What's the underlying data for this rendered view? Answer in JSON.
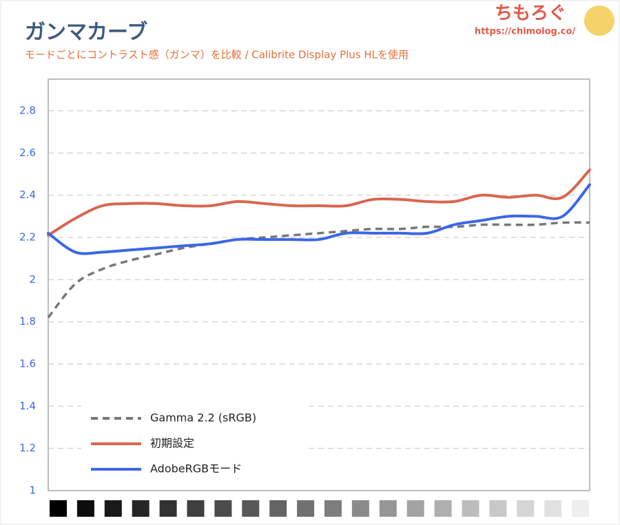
{
  "chart_data": {
    "type": "line",
    "title": "ガンマカーブ",
    "subtitle": "モードごとにコントラスト感（ガンマ）を比較 / Calibrite Display Plus HLを使用",
    "logo": {
      "name": "ちもろぐ",
      "url": "https://chimolog.co/"
    },
    "categories": [
      null,
      null,
      null,
      null,
      null,
      null,
      null,
      null,
      null,
      null,
      null,
      null,
      null,
      null,
      null,
      null,
      null,
      null,
      null,
      null,
      null
    ],
    "series": [
      {
        "name": "Gamma 2.2 (sRGB)",
        "color": "#777777",
        "dashed": true,
        "values": [
          1.82,
          1.98,
          2.05,
          2.09,
          2.12,
          2.15,
          2.17,
          2.19,
          2.2,
          2.21,
          2.22,
          2.23,
          2.24,
          2.24,
          2.25,
          2.25,
          2.26,
          2.26,
          2.26,
          2.27,
          2.27
        ]
      },
      {
        "name": "初期設定",
        "color": "#d9654f",
        "values": [
          2.21,
          2.29,
          2.35,
          2.36,
          2.36,
          2.35,
          2.35,
          2.37,
          2.36,
          2.35,
          2.35,
          2.35,
          2.38,
          2.38,
          2.37,
          2.37,
          2.4,
          2.39,
          2.4,
          2.39,
          2.52
        ]
      },
      {
        "name": "AdobeRGBモード",
        "color": "#3c66e8",
        "values": [
          2.22,
          2.13,
          2.13,
          2.14,
          2.15,
          2.16,
          2.17,
          2.19,
          2.19,
          2.19,
          2.19,
          2.22,
          2.22,
          2.22,
          2.22,
          2.26,
          2.28,
          2.3,
          2.3,
          2.3,
          2.45
        ]
      }
    ],
    "ylim": [
      1,
      2.95
    ],
    "yticks": [
      1,
      1.2,
      1.4,
      1.6,
      1.8,
      2,
      2.2,
      2.4,
      2.6,
      2.8
    ],
    "grid": true
  }
}
